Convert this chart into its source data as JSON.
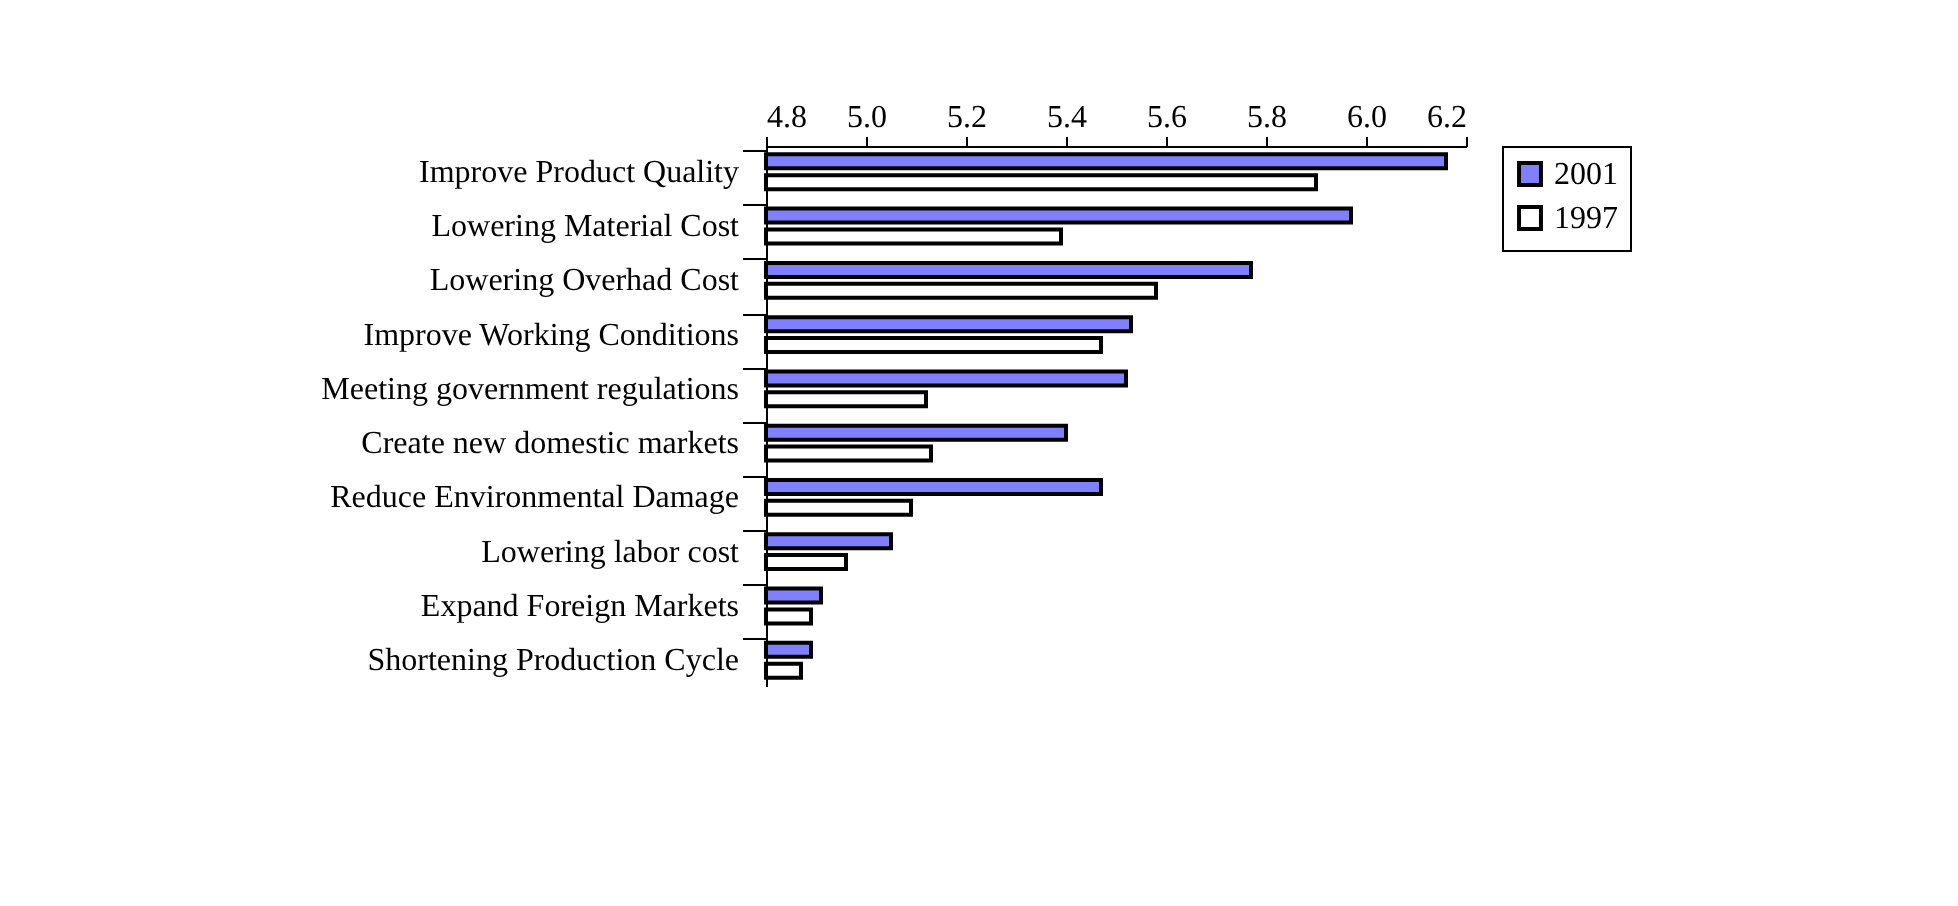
{
  "chart_data": {
    "type": "bar",
    "orientation": "horizontal",
    "categories": [
      "Improve Product Quality",
      "Lowering Material Cost",
      "Lowering Overhad Cost",
      "Improve Working Conditions",
      "Meeting government regulations",
      "Create new domestic markets",
      "Reduce Environmental Damage",
      "Lowering labor cost",
      "Expand Foreign Markets",
      "Shortening Production Cycle"
    ],
    "series": [
      {
        "name": "2001",
        "color": "#8080ff",
        "values": [
          6.16,
          5.97,
          5.77,
          5.53,
          5.52,
          5.4,
          5.47,
          5.05,
          4.91,
          4.89
        ]
      },
      {
        "name": "1997",
        "color": "#ffffff",
        "values": [
          5.9,
          5.39,
          5.58,
          5.47,
          5.12,
          5.13,
          5.09,
          4.96,
          4.89,
          4.87
        ]
      }
    ],
    "xlim": [
      4.8,
      6.2
    ],
    "xticks": [
      4.8,
      {
        "value": 5.0,
        "label": "5.0"
      },
      5.2,
      5.4,
      5.6,
      5.8,
      {
        "value": 6.0,
        "label": "6.0"
      },
      6.2
    ],
    "grid": false,
    "legend": "right"
  }
}
